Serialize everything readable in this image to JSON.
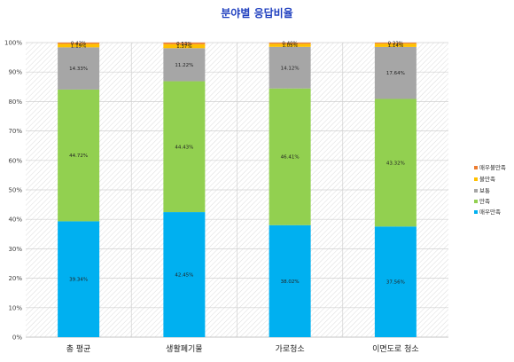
{
  "chart_data": {
    "type": "bar",
    "stacked": true,
    "title": "분야별 응답비율",
    "categories": [
      "총 평균",
      "생활폐기물",
      "가로청소",
      "이면도로 청소"
    ],
    "yticks": [
      "0%",
      "10%",
      "20%",
      "30%",
      "40%",
      "50%",
      "60%",
      "70%",
      "80%",
      "90%",
      "100%"
    ],
    "ylim": [
      0,
      100
    ],
    "series": [
      {
        "name": "매우만족",
        "color": "#00b0f0",
        "values": [
          39.34,
          42.45,
          38.02,
          37.56
        ],
        "labels": [
          "39.34%",
          "42.45%",
          "38.02%",
          "37.56%"
        ]
      },
      {
        "name": "만족",
        "color": "#92d050",
        "values": [
          44.72,
          44.43,
          46.41,
          43.32
        ],
        "labels": [
          "44.72%",
          "44.43%",
          "46.41%",
          "43.32%"
        ]
      },
      {
        "name": "보통",
        "color": "#a6a6a6",
        "values": [
          14.33,
          11.22,
          14.12,
          17.64
        ],
        "labels": [
          "14.33%",
          "11.22%",
          "14.12%",
          "17.64%"
        ]
      },
      {
        "name": "불만족",
        "color": "#ffc000",
        "values": [
          1.19,
          1.37,
          1.05,
          1.14
        ],
        "labels": [
          "1.19%",
          "1.37%",
          "1.05%",
          "1.14%"
        ]
      },
      {
        "name": "매우불만족",
        "color": "#ed7d31",
        "values": [
          0.42,
          0.53,
          0.4,
          0.33
        ],
        "labels": [
          "0.42%",
          "0.53%",
          "0.40%",
          "0.33%"
        ]
      }
    ],
    "legend": "right",
    "grid": true
  }
}
